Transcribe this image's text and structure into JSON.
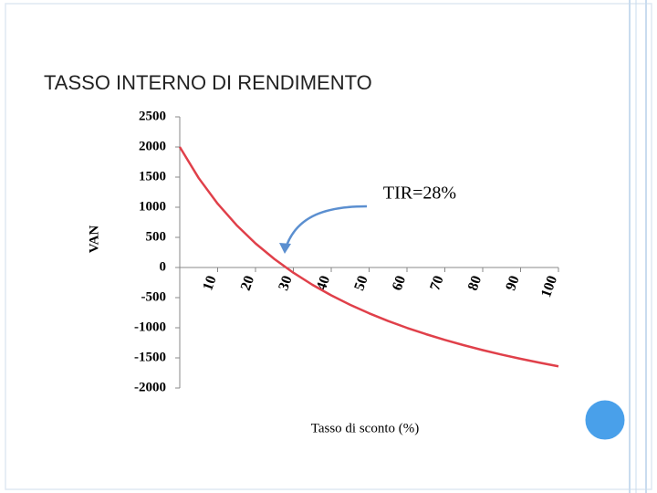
{
  "chart_data": {
    "type": "line",
    "title": "TASSO INTERNO DI RENDIMENTO",
    "annotation": "TIR=28%",
    "x_label": "Tasso di sconto (%)",
    "y_label": "VAN",
    "x": [
      0,
      5,
      10,
      15,
      20,
      25,
      30,
      35,
      40,
      45,
      50,
      55,
      60,
      65,
      70,
      75,
      80,
      85,
      90,
      95,
      100
    ],
    "series": [
      {
        "name": "VAN",
        "color": "#e0404a",
        "values": [
          2000,
          1484,
          1059,
          703,
          400,
          140,
          -87,
          -286,
          -462,
          -619,
          -760,
          -887,
          -1002,
          -1106,
          -1202,
          -1290,
          -1371,
          -1446,
          -1515,
          -1580,
          -1640
        ]
      }
    ],
    "xlim": [
      0,
      100
    ],
    "xticks": [
      10,
      20,
      30,
      40,
      50,
      60,
      70,
      80,
      90,
      100
    ],
    "ylim": [
      -2000,
      2500
    ],
    "yticks": [
      -2000,
      -1500,
      -1000,
      -500,
      0,
      500,
      1000,
      1500,
      2000,
      2500
    ]
  }
}
